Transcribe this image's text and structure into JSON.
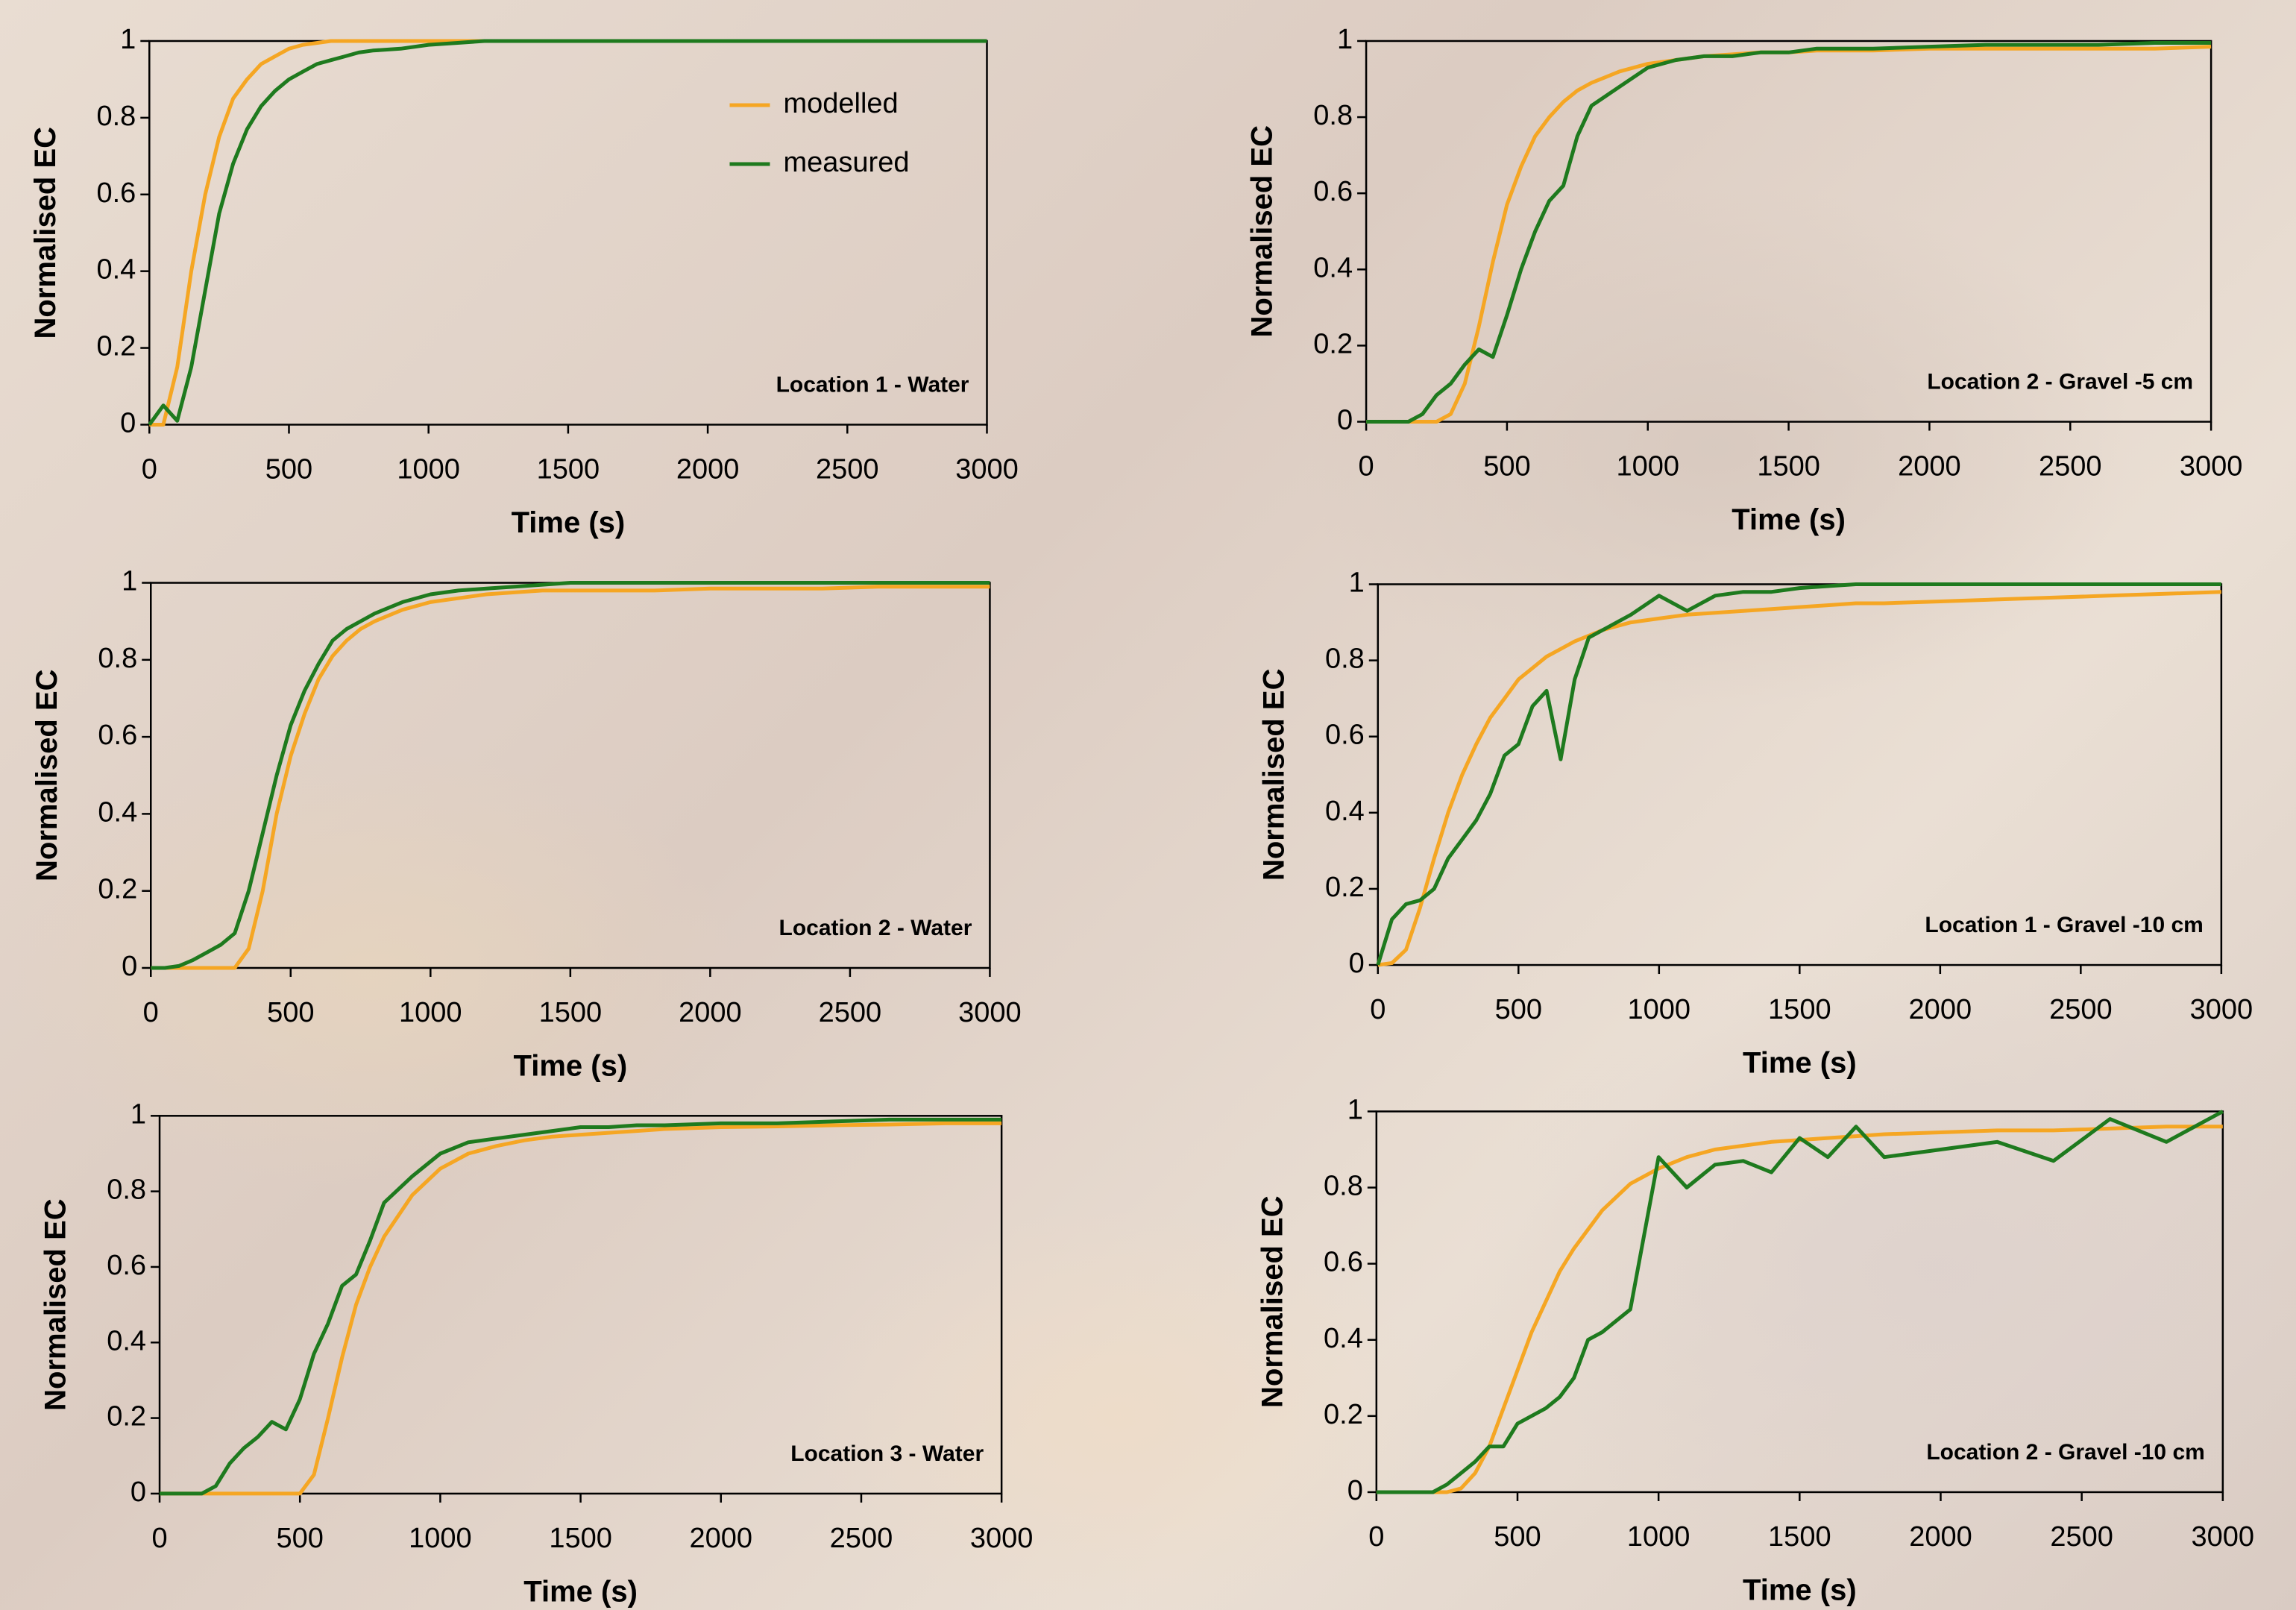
{
  "chart_data": [
    {
      "type": "line",
      "annotation": "Location 1 - Water",
      "xlabel": "Time (s)",
      "ylabel": "Normalised EC",
      "x": [
        0,
        50,
        100,
        150,
        200,
        250,
        300,
        350,
        400,
        450,
        500,
        550,
        600,
        650,
        700,
        750,
        800,
        900,
        1000,
        1100,
        1200,
        1300,
        1400,
        1500,
        1600,
        1700,
        1800,
        2000,
        2200,
        2400,
        2600,
        2800,
        3000
      ],
      "series": [
        {
          "name": "modelled",
          "color": "#f5a623",
          "values": [
            0,
            0,
            0.15,
            0.4,
            0.6,
            0.75,
            0.85,
            0.9,
            0.94,
            0.96,
            0.98,
            0.99,
            0.995,
            1,
            1,
            1,
            1,
            1,
            1,
            1,
            1,
            1,
            1,
            1,
            1,
            1,
            1,
            1,
            1,
            1,
            1,
            1,
            1
          ]
        },
        {
          "name": "measured",
          "color": "#1e7a1e",
          "values": [
            0,
            0.05,
            0.01,
            0.15,
            0.35,
            0.55,
            0.68,
            0.77,
            0.83,
            0.87,
            0.9,
            0.92,
            0.94,
            0.95,
            0.96,
            0.97,
            0.975,
            0.98,
            0.99,
            0.995,
            1,
            1,
            1,
            1,
            1,
            1,
            1,
            1,
            1,
            1,
            1,
            1,
            1
          ]
        }
      ],
      "legend": "upper right",
      "xlim": [
        0,
        3000
      ],
      "xticks": [
        0,
        500,
        1000,
        1500,
        2000,
        2500,
        3000
      ],
      "ylim": [
        0,
        1
      ],
      "yticks": [
        0,
        0.2,
        0.4,
        0.6,
        0.8,
        1
      ],
      "grid": false
    },
    {
      "type": "line",
      "annotation": "Location 2 - Gravel -5 cm",
      "xlabel": "Time (s)",
      "ylabel": "Normalised EC",
      "x": [
        0,
        50,
        100,
        150,
        200,
        250,
        300,
        350,
        400,
        450,
        500,
        550,
        600,
        650,
        700,
        750,
        800,
        900,
        1000,
        1100,
        1200,
        1300,
        1400,
        1500,
        1600,
        1700,
        1800,
        2000,
        2200,
        2400,
        2600,
        2800,
        3000
      ],
      "series": [
        {
          "color": "#f5a623",
          "values": [
            0,
            0,
            0,
            0,
            0,
            0,
            0.02,
            0.1,
            0.25,
            0.42,
            0.57,
            0.67,
            0.75,
            0.8,
            0.84,
            0.87,
            0.89,
            0.92,
            0.94,
            0.95,
            0.96,
            0.965,
            0.97,
            0.97,
            0.975,
            0.975,
            0.975,
            0.98,
            0.98,
            0.98,
            0.98,
            0.98,
            0.985
          ]
        },
        {
          "color": "#1e7a1e",
          "values": [
            0,
            0,
            0,
            0,
            0.02,
            0.07,
            0.1,
            0.15,
            0.19,
            0.17,
            0.28,
            0.4,
            0.5,
            0.58,
            0.62,
            0.75,
            0.83,
            0.88,
            0.93,
            0.95,
            0.96,
            0.96,
            0.97,
            0.97,
            0.98,
            0.98,
            0.98,
            0.985,
            0.99,
            0.99,
            0.99,
            0.995,
            0.995
          ]
        }
      ],
      "xlim": [
        0,
        3000
      ],
      "xticks": [
        0,
        500,
        1000,
        1500,
        2000,
        2500,
        3000
      ],
      "ylim": [
        0,
        1
      ],
      "yticks": [
        0,
        0.2,
        0.4,
        0.6,
        0.8,
        1
      ],
      "grid": false
    },
    {
      "type": "line",
      "annotation": "Location 2 - Water",
      "xlabel": "Time (s)",
      "ylabel": "Normalised EC",
      "x": [
        0,
        50,
        100,
        150,
        200,
        250,
        300,
        350,
        400,
        450,
        500,
        550,
        600,
        650,
        700,
        750,
        800,
        900,
        1000,
        1100,
        1200,
        1300,
        1400,
        1500,
        1600,
        1700,
        1800,
        2000,
        2200,
        2400,
        2600,
        2800,
        3000
      ],
      "series": [
        {
          "color": "#f5a623",
          "values": [
            0,
            0,
            0,
            0,
            0,
            0,
            0,
            0.05,
            0.2,
            0.4,
            0.55,
            0.66,
            0.75,
            0.81,
            0.85,
            0.88,
            0.9,
            0.93,
            0.95,
            0.96,
            0.97,
            0.975,
            0.98,
            0.98,
            0.98,
            0.98,
            0.98,
            0.985,
            0.985,
            0.985,
            0.99,
            0.99,
            0.99
          ]
        },
        {
          "color": "#1e7a1e",
          "values": [
            0,
            0,
            0.005,
            0.02,
            0.04,
            0.06,
            0.09,
            0.2,
            0.35,
            0.5,
            0.63,
            0.72,
            0.79,
            0.85,
            0.88,
            0.9,
            0.92,
            0.95,
            0.97,
            0.98,
            0.985,
            0.99,
            0.995,
            1,
            1,
            1,
            1,
            1,
            1,
            1,
            1,
            1,
            1
          ]
        }
      ],
      "xlim": [
        0,
        3000
      ],
      "xticks": [
        0,
        500,
        1000,
        1500,
        2000,
        2500,
        3000
      ],
      "ylim": [
        0,
        1
      ],
      "yticks": [
        0,
        0.2,
        0.4,
        0.6,
        0.8,
        1
      ],
      "grid": false
    },
    {
      "type": "line",
      "annotation": "Location 1 - Gravel -10 cm",
      "xlabel": "Time (s)",
      "ylabel": "Normalised EC",
      "x": [
        0,
        50,
        100,
        150,
        200,
        250,
        300,
        350,
        400,
        450,
        500,
        550,
        600,
        650,
        700,
        750,
        800,
        900,
        1000,
        1100,
        1200,
        1300,
        1400,
        1500,
        1600,
        1700,
        1800,
        2000,
        2200,
        2400,
        2600,
        2800,
        3000
      ],
      "series": [
        {
          "color": "#f5a623",
          "values": [
            0,
            0.005,
            0.04,
            0.15,
            0.28,
            0.4,
            0.5,
            0.58,
            0.65,
            0.7,
            0.75,
            0.78,
            0.81,
            0.83,
            0.85,
            0.865,
            0.88,
            0.9,
            0.91,
            0.92,
            0.925,
            0.93,
            0.935,
            0.94,
            0.945,
            0.95,
            0.95,
            0.955,
            0.96,
            0.965,
            0.97,
            0.975,
            0.98
          ]
        },
        {
          "color": "#1e7a1e",
          "values": [
            0,
            0.12,
            0.16,
            0.17,
            0.2,
            0.28,
            0.33,
            0.38,
            0.45,
            0.55,
            0.58,
            0.68,
            0.72,
            0.54,
            0.75,
            0.86,
            0.88,
            0.92,
            0.97,
            0.93,
            0.97,
            0.98,
            0.98,
            0.99,
            0.995,
            1,
            1,
            1,
            1,
            1,
            1,
            1,
            1
          ]
        }
      ],
      "xlim": [
        0,
        3000
      ],
      "xticks": [
        0,
        500,
        1000,
        1500,
        2000,
        2500,
        3000
      ],
      "ylim": [
        0,
        1
      ],
      "yticks": [
        0,
        0.2,
        0.4,
        0.6,
        0.8,
        1
      ],
      "grid": false
    },
    {
      "type": "line",
      "annotation": "Location 3 - Water",
      "xlabel": "Time (s)",
      "ylabel": "Normalised EC",
      "x": [
        0,
        50,
        100,
        150,
        200,
        250,
        300,
        350,
        400,
        450,
        500,
        550,
        600,
        650,
        700,
        750,
        800,
        900,
        1000,
        1100,
        1200,
        1300,
        1400,
        1500,
        1600,
        1700,
        1800,
        2000,
        2200,
        2400,
        2600,
        2800,
        3000
      ],
      "series": [
        {
          "color": "#f5a623",
          "values": [
            0,
            0,
            0,
            0,
            0,
            0,
            0,
            0,
            0,
            0,
            0,
            0.05,
            0.2,
            0.36,
            0.5,
            0.6,
            0.68,
            0.79,
            0.86,
            0.9,
            0.92,
            0.935,
            0.945,
            0.95,
            0.955,
            0.96,
            0.965,
            0.97,
            0.972,
            0.975,
            0.977,
            0.98,
            0.98
          ]
        },
        {
          "color": "#1e7a1e",
          "values": [
            0,
            0,
            0,
            0,
            0.02,
            0.08,
            0.12,
            0.15,
            0.19,
            0.17,
            0.25,
            0.37,
            0.45,
            0.55,
            0.58,
            0.67,
            0.77,
            0.84,
            0.9,
            0.93,
            0.94,
            0.95,
            0.96,
            0.97,
            0.97,
            0.975,
            0.975,
            0.98,
            0.98,
            0.985,
            0.99,
            0.99,
            0.99
          ]
        }
      ],
      "xlim": [
        0,
        3000
      ],
      "xticks": [
        0,
        500,
        1000,
        1500,
        2000,
        2500,
        3000
      ],
      "ylim": [
        0,
        1
      ],
      "yticks": [
        0,
        0.2,
        0.4,
        0.6,
        0.8,
        1
      ],
      "grid": false
    },
    {
      "type": "line",
      "annotation": "Location 2 - Gravel -10 cm",
      "xlabel": "Time (s)",
      "ylabel": "Normalised EC",
      "x": [
        0,
        50,
        100,
        150,
        200,
        250,
        300,
        350,
        400,
        450,
        500,
        550,
        600,
        650,
        700,
        750,
        800,
        900,
        1000,
        1100,
        1200,
        1300,
        1400,
        1500,
        1600,
        1700,
        1800,
        2000,
        2200,
        2400,
        2600,
        2800,
        3000
      ],
      "series": [
        {
          "color": "#f5a623",
          "values": [
            0,
            0,
            0,
            0,
            0,
            0,
            0.01,
            0.05,
            0.12,
            0.22,
            0.32,
            0.42,
            0.5,
            0.58,
            0.64,
            0.69,
            0.74,
            0.81,
            0.85,
            0.88,
            0.9,
            0.91,
            0.92,
            0.925,
            0.93,
            0.935,
            0.94,
            0.945,
            0.95,
            0.95,
            0.955,
            0.96,
            0.96
          ]
        },
        {
          "color": "#1e7a1e",
          "values": [
            0,
            0,
            0,
            0,
            0,
            0.02,
            0.05,
            0.08,
            0.12,
            0.12,
            0.18,
            0.2,
            0.22,
            0.25,
            0.3,
            0.4,
            0.42,
            0.48,
            0.88,
            0.8,
            0.86,
            0.87,
            0.84,
            0.93,
            0.88,
            0.96,
            0.88,
            0.9,
            0.92,
            0.87,
            0.98,
            0.92,
            1
          ]
        }
      ],
      "xlim": [
        0,
        3000
      ],
      "xticks": [
        0,
        500,
        1000,
        1500,
        2000,
        2500,
        3000
      ],
      "ylim": [
        0,
        1
      ],
      "yticks": [
        0,
        0.2,
        0.4,
        0.6,
        0.8,
        1
      ],
      "grid": false
    }
  ]
}
